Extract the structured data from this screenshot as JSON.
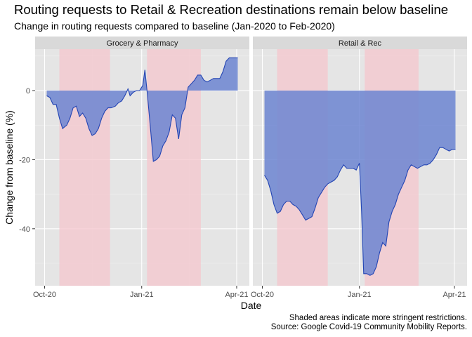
{
  "title": "Routing requests to Retail & Recreation destinations remain below baseline",
  "subtitle": "Change in routing requests compared to baseline (Jan-2020 to Feb-2020)",
  "caption_lines": [
    "Shaded areas indicate more stringent restrictions.",
    "Source: Google Covid-19 Community Mobility Reports."
  ],
  "colors": {
    "panel_bg": "#E5E5E5",
    "strip_bg": "#D9D9D9",
    "grid": "#FFFFFF",
    "shade": "#F4C6CC",
    "area_fill": "#6C85D1",
    "line": "#2445B3"
  },
  "chart_data": {
    "type": "area",
    "xlabel": "Date",
    "ylabel": "Change from baseline (%)",
    "x_ticks": [
      {
        "date": "2020-10-01",
        "label": "Oct-20"
      },
      {
        "date": "2021-01-01",
        "label": "Jan-21"
      },
      {
        "date": "2021-04-01",
        "label": "Apr-21"
      }
    ],
    "y_ticks": [
      0,
      -20,
      -40
    ],
    "xlim": [
      "2020-09-22",
      "2021-04-13"
    ],
    "ylim": [
      -56.5,
      12
    ],
    "shaded_periods": [
      {
        "start": "2020-10-15",
        "end": "2020-12-02"
      },
      {
        "start": "2021-01-06",
        "end": "2021-02-26"
      }
    ],
    "panels": [
      {
        "name": "Grocery & Pharmacy",
        "series": [
          {
            "date": "2020-10-03",
            "value": -1.5
          },
          {
            "date": "2020-10-06",
            "value": -2
          },
          {
            "date": "2020-10-09",
            "value": -4
          },
          {
            "date": "2020-10-12",
            "value": -4
          },
          {
            "date": "2020-10-15",
            "value": -8
          },
          {
            "date": "2020-10-18",
            "value": -11
          },
          {
            "date": "2020-10-22",
            "value": -10
          },
          {
            "date": "2020-10-25",
            "value": -8
          },
          {
            "date": "2020-10-28",
            "value": -5
          },
          {
            "date": "2020-10-31",
            "value": -4.5
          },
          {
            "date": "2020-11-03",
            "value": -7.5
          },
          {
            "date": "2020-11-06",
            "value": -6.5
          },
          {
            "date": "2020-11-09",
            "value": -8
          },
          {
            "date": "2020-11-12",
            "value": -11
          },
          {
            "date": "2020-11-15",
            "value": -13
          },
          {
            "date": "2020-11-18",
            "value": -12.5
          },
          {
            "date": "2020-11-21",
            "value": -11
          },
          {
            "date": "2020-11-24",
            "value": -8
          },
          {
            "date": "2020-11-27",
            "value": -6
          },
          {
            "date": "2020-11-30",
            "value": -5
          },
          {
            "date": "2020-12-03",
            "value": -5
          },
          {
            "date": "2020-12-07",
            "value": -4.5
          },
          {
            "date": "2020-12-10",
            "value": -3.5
          },
          {
            "date": "2020-12-13",
            "value": -3
          },
          {
            "date": "2020-12-16",
            "value": -1.5
          },
          {
            "date": "2020-12-19",
            "value": 0.5
          },
          {
            "date": "2020-12-21",
            "value": -1.5
          },
          {
            "date": "2020-12-24",
            "value": -0.5
          },
          {
            "date": "2020-12-27",
            "value": 0
          },
          {
            "date": "2020-12-30",
            "value": 0
          },
          {
            "date": "2021-01-02",
            "value": 1.5
          },
          {
            "date": "2021-01-04",
            "value": 6
          },
          {
            "date": "2021-01-06",
            "value": 0
          },
          {
            "date": "2021-01-09",
            "value": -10
          },
          {
            "date": "2021-01-12",
            "value": -20.5
          },
          {
            "date": "2021-01-15",
            "value": -20
          },
          {
            "date": "2021-01-18",
            "value": -19
          },
          {
            "date": "2021-01-21",
            "value": -16
          },
          {
            "date": "2021-01-24",
            "value": -14.5
          },
          {
            "date": "2021-01-27",
            "value": -12
          },
          {
            "date": "2021-01-30",
            "value": -7
          },
          {
            "date": "2021-02-02",
            "value": -8
          },
          {
            "date": "2021-02-05",
            "value": -14
          },
          {
            "date": "2021-02-08",
            "value": -7
          },
          {
            "date": "2021-02-11",
            "value": -5
          },
          {
            "date": "2021-02-14",
            "value": 1
          },
          {
            "date": "2021-02-17",
            "value": 2
          },
          {
            "date": "2021-02-20",
            "value": 3
          },
          {
            "date": "2021-02-23",
            "value": 4.5
          },
          {
            "date": "2021-02-26",
            "value": 4.5
          },
          {
            "date": "2021-03-01",
            "value": 3
          },
          {
            "date": "2021-03-04",
            "value": 2.5
          },
          {
            "date": "2021-03-07",
            "value": 3
          },
          {
            "date": "2021-03-10",
            "value": 3.5
          },
          {
            "date": "2021-03-13",
            "value": 3.5
          },
          {
            "date": "2021-03-16",
            "value": 3.5
          },
          {
            "date": "2021-03-19",
            "value": 5.5
          },
          {
            "date": "2021-03-22",
            "value": 8.5
          },
          {
            "date": "2021-03-25",
            "value": 9.5
          },
          {
            "date": "2021-03-28",
            "value": 9.5
          },
          {
            "date": "2021-04-02",
            "value": 9.5
          }
        ]
      },
      {
        "name": "Retail & Rec",
        "series": [
          {
            "date": "2020-10-03",
            "value": -24.5
          },
          {
            "date": "2020-10-06",
            "value": -26
          },
          {
            "date": "2020-10-09",
            "value": -29
          },
          {
            "date": "2020-10-12",
            "value": -33
          },
          {
            "date": "2020-10-15",
            "value": -35.5
          },
          {
            "date": "2020-10-18",
            "value": -35
          },
          {
            "date": "2020-10-21",
            "value": -33
          },
          {
            "date": "2020-10-24",
            "value": -32
          },
          {
            "date": "2020-10-27",
            "value": -32
          },
          {
            "date": "2020-10-30",
            "value": -33
          },
          {
            "date": "2020-11-02",
            "value": -33.5
          },
          {
            "date": "2020-11-05",
            "value": -34.5
          },
          {
            "date": "2020-11-08",
            "value": -36
          },
          {
            "date": "2020-11-11",
            "value": -37.5
          },
          {
            "date": "2020-11-14",
            "value": -37
          },
          {
            "date": "2020-11-17",
            "value": -36.5
          },
          {
            "date": "2020-11-20",
            "value": -34
          },
          {
            "date": "2020-11-23",
            "value": -31
          },
          {
            "date": "2020-11-26",
            "value": -29.5
          },
          {
            "date": "2020-11-29",
            "value": -28
          },
          {
            "date": "2020-12-02",
            "value": -27
          },
          {
            "date": "2020-12-05",
            "value": -26.5
          },
          {
            "date": "2020-12-08",
            "value": -26
          },
          {
            "date": "2020-12-11",
            "value": -25
          },
          {
            "date": "2020-12-14",
            "value": -23
          },
          {
            "date": "2020-12-17",
            "value": -21.5
          },
          {
            "date": "2020-12-20",
            "value": -22.5
          },
          {
            "date": "2020-12-23",
            "value": -22.5
          },
          {
            "date": "2020-12-26",
            "value": -22.5
          },
          {
            "date": "2020-12-29",
            "value": -23
          },
          {
            "date": "2021-01-01",
            "value": -21
          },
          {
            "date": "2021-01-03",
            "value": -35
          },
          {
            "date": "2021-01-05",
            "value": -53
          },
          {
            "date": "2021-01-08",
            "value": -53
          },
          {
            "date": "2021-01-11",
            "value": -53.5
          },
          {
            "date": "2021-01-14",
            "value": -53
          },
          {
            "date": "2021-01-17",
            "value": -51
          },
          {
            "date": "2021-01-20",
            "value": -47
          },
          {
            "date": "2021-01-23",
            "value": -44
          },
          {
            "date": "2021-01-26",
            "value": -45
          },
          {
            "date": "2021-01-29",
            "value": -38
          },
          {
            "date": "2021-02-01",
            "value": -35
          },
          {
            "date": "2021-02-04",
            "value": -33
          },
          {
            "date": "2021-02-07",
            "value": -30
          },
          {
            "date": "2021-02-10",
            "value": -28
          },
          {
            "date": "2021-02-13",
            "value": -26
          },
          {
            "date": "2021-02-16",
            "value": -23
          },
          {
            "date": "2021-02-19",
            "value": -21.5
          },
          {
            "date": "2021-02-22",
            "value": -22
          },
          {
            "date": "2021-02-25",
            "value": -22.5
          },
          {
            "date": "2021-02-28",
            "value": -22
          },
          {
            "date": "2021-03-03",
            "value": -21.5
          },
          {
            "date": "2021-03-06",
            "value": -21.5
          },
          {
            "date": "2021-03-09",
            "value": -21
          },
          {
            "date": "2021-03-12",
            "value": -20
          },
          {
            "date": "2021-03-15",
            "value": -18.5
          },
          {
            "date": "2021-03-18",
            "value": -16.5
          },
          {
            "date": "2021-03-21",
            "value": -16.5
          },
          {
            "date": "2021-03-24",
            "value": -17
          },
          {
            "date": "2021-03-27",
            "value": -17.5
          },
          {
            "date": "2021-03-30",
            "value": -17
          },
          {
            "date": "2021-04-02",
            "value": -17
          }
        ]
      }
    ]
  }
}
